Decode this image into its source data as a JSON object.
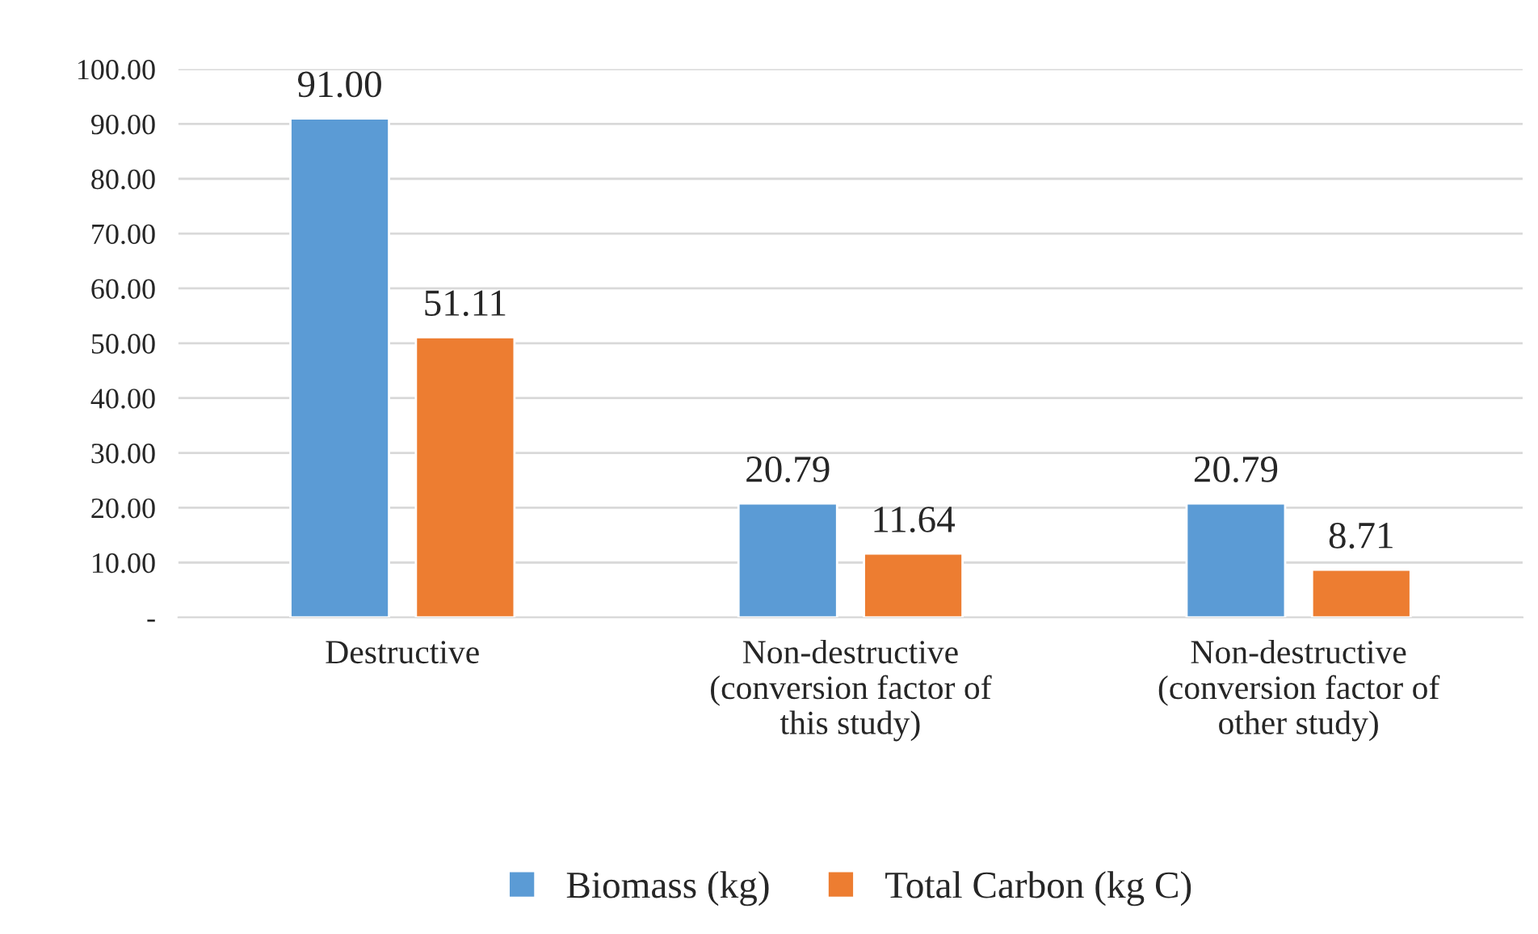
{
  "chart_data": {
    "type": "bar",
    "categories": [
      "Destructive",
      "Non-destructive\n(conversion factor of\nthis study)",
      "Non-destructive\n(conversion factor of\nother study)"
    ],
    "series": [
      {
        "name": "Biomass (kg)",
        "color": "#5b9bd5",
        "values": [
          91.0,
          20.79,
          20.79
        ],
        "value_labels": [
          "91.00",
          "20.79",
          "20.79"
        ]
      },
      {
        "name": "Total Carbon (kg C)",
        "color": "#ed7d31",
        "values": [
          51.11,
          11.64,
          8.71
        ],
        "value_labels": [
          "51.11",
          "11.64",
          "8.71"
        ]
      }
    ],
    "ylim": [
      0,
      100
    ],
    "yticks": [
      {
        "value": 0,
        "label": "-"
      },
      {
        "value": 10,
        "label": "10.00"
      },
      {
        "value": 20,
        "label": "20.00"
      },
      {
        "value": 30,
        "label": "30.00"
      },
      {
        "value": 40,
        "label": "40.00"
      },
      {
        "value": 50,
        "label": "50.00"
      },
      {
        "value": 60,
        "label": "60.00"
      },
      {
        "value": 70,
        "label": "70.00"
      },
      {
        "value": 80,
        "label": "80.00"
      },
      {
        "value": 90,
        "label": "90.00"
      },
      {
        "value": 100,
        "label": "100.00"
      }
    ],
    "grid": "y",
    "legend": "bottom"
  }
}
